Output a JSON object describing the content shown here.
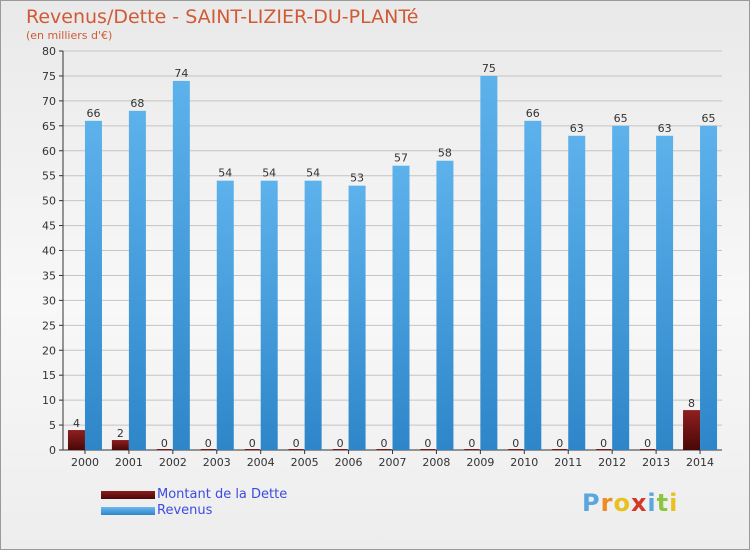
{
  "header": {
    "title": "Revenus/Dette - SAINT-LIZIER-DU-PLANTé",
    "subtitle": "(en milliers d'€)"
  },
  "chart_data": {
    "type": "bar",
    "categories": [
      "2000",
      "2001",
      "2002",
      "2003",
      "2004",
      "2005",
      "2006",
      "2007",
      "2008",
      "2009",
      "2010",
      "2011",
      "2012",
      "2013",
      "2014"
    ],
    "series": [
      {
        "name": "Montant de la Dette",
        "color": "#6e0f0f",
        "values": [
          4,
          2,
          0,
          0,
          0,
          0,
          0,
          0,
          0,
          0,
          0,
          0,
          0,
          0,
          8
        ]
      },
      {
        "name": "Revenus",
        "color": "#4aa3e3",
        "values": [
          66,
          68,
          74,
          54,
          54,
          54,
          53,
          57,
          58,
          75,
          66,
          63,
          65,
          63,
          65
        ]
      }
    ],
    "ylim": [
      0,
      80
    ],
    "yticks": [
      0,
      5,
      10,
      15,
      20,
      25,
      30,
      35,
      40,
      45,
      50,
      55,
      60,
      65,
      70,
      75,
      80
    ],
    "grid": true,
    "legend": "bottom-left"
  },
  "legend": {
    "items": [
      {
        "label": "Montant de la Dette",
        "color": "#6e0f0f"
      },
      {
        "label": "Revenus",
        "color": "#4aa3e3"
      }
    ]
  },
  "logo": {
    "text": "Proxiti",
    "letters": [
      {
        "ch": "P",
        "color": "#5aa7e0"
      },
      {
        "ch": "r",
        "color": "#f08a24"
      },
      {
        "ch": "o",
        "color": "#e8c020"
      },
      {
        "ch": "x",
        "color": "#d23a2a"
      },
      {
        "ch": "i",
        "color": "#5aa7e0"
      },
      {
        "ch": "t",
        "color": "#8cc63e"
      },
      {
        "ch": "i",
        "color": "#e8c020"
      }
    ]
  }
}
